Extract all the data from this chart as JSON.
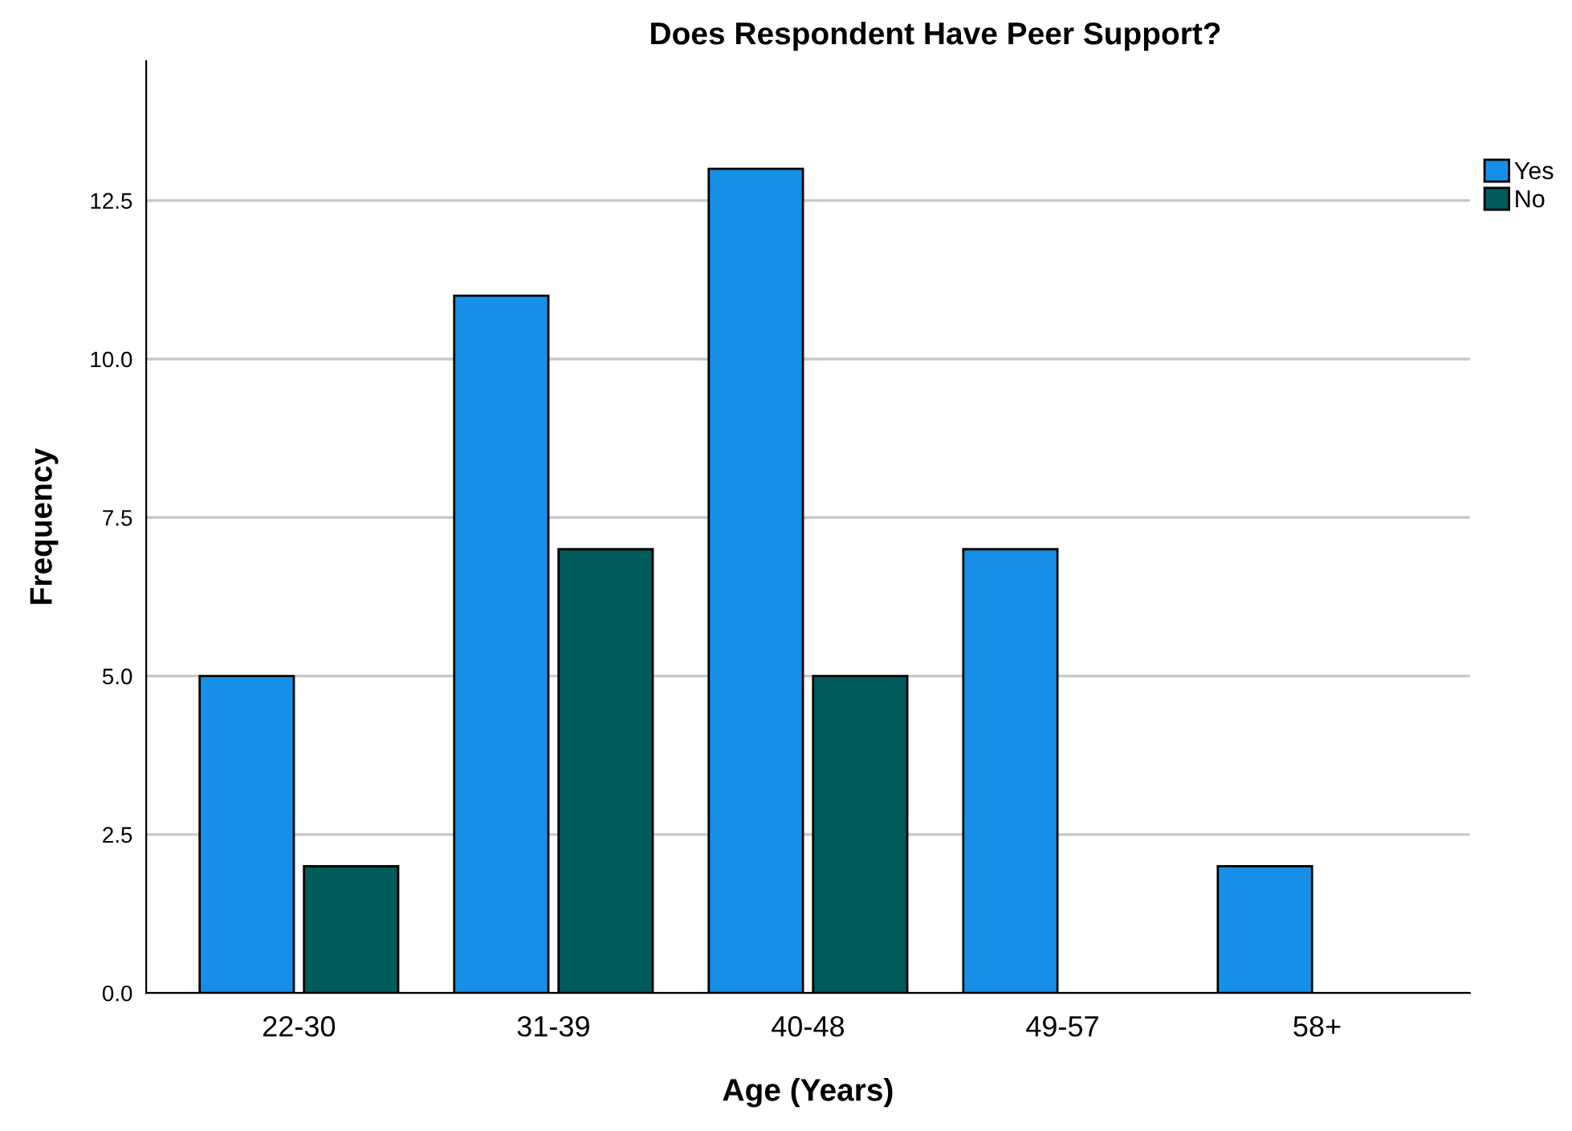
{
  "chart_data": {
    "type": "bar",
    "title": "Does Respondent Have Peer Support?",
    "xlabel": "Age (Years)",
    "ylabel": "Frequency",
    "categories": [
      "22-30",
      "31-39",
      "40-48",
      "49-57",
      "58+"
    ],
    "series": [
      {
        "name": "Yes",
        "color": "#1590e6",
        "values": [
          5,
          11,
          13,
          7,
          2
        ]
      },
      {
        "name": "No",
        "color": "#005b5b",
        "values": [
          2,
          7,
          5,
          null,
          null
        ]
      }
    ],
    "ylim": [
      0,
      14.7
    ],
    "yticks": [
      {
        "value": 0,
        "label": "0.0"
      },
      {
        "value": 2.5,
        "label": "2.5"
      },
      {
        "value": 5,
        "label": "5.0"
      },
      {
        "value": 7.5,
        "label": "7.5"
      },
      {
        "value": 10,
        "label": "10.0"
      },
      {
        "value": 12.5,
        "label": "12.5"
      }
    ],
    "grid": "y",
    "legend": "top right"
  }
}
